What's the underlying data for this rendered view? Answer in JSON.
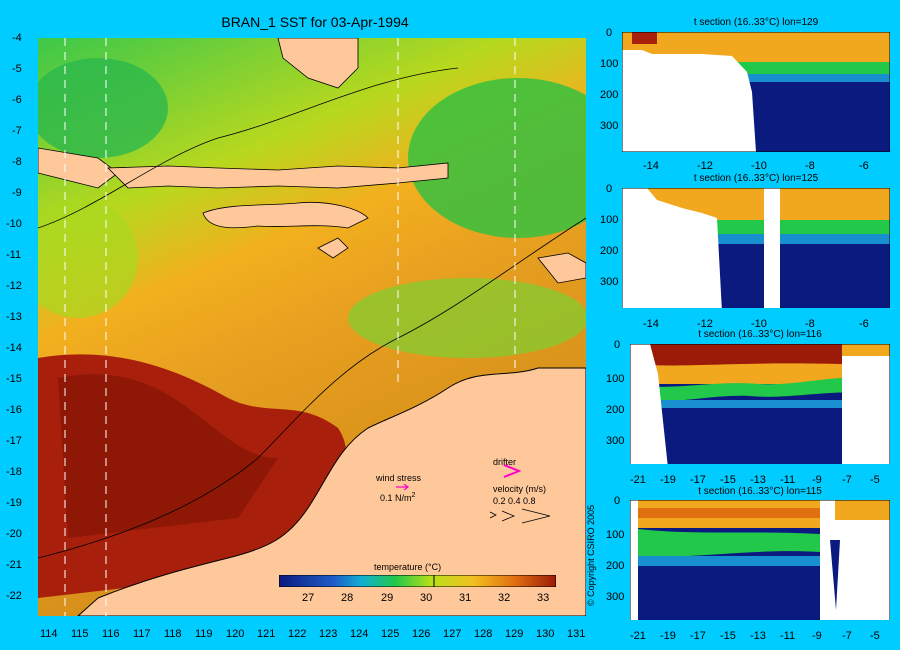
{
  "title": "BRAN_1 SST for 03-Apr-1994",
  "map": {
    "y_ticks": [
      "-4",
      "-5",
      "-6",
      "-7",
      "-8",
      "-9",
      "-10",
      "-11",
      "-12",
      "-13",
      "-14",
      "-15",
      "-16",
      "-17",
      "-18",
      "-19",
      "-20",
      "-21",
      "-22"
    ],
    "x_ticks": [
      "114",
      "115",
      "116",
      "117",
      "118",
      "119",
      "120",
      "121",
      "122",
      "123",
      "124",
      "125",
      "126",
      "127",
      "128",
      "129",
      "130",
      "131"
    ]
  },
  "legend": {
    "wind_stress_label": "wind stress",
    "wind_stress_value": "0.1 N/m",
    "wind_stress_sup": "2",
    "drifter_label": "drifter",
    "velocity_label": "velocity (m/s)",
    "velocity_values": "0.2 0.4 0.8",
    "colorbar_title": "temperature (°C)",
    "colorbar_ticks": [
      "27",
      "28",
      "29",
      "30",
      "31",
      "32",
      "33"
    ],
    "colors": {
      "cold": "#0b1a7f",
      "mid": "#22c84a",
      "warm": "#f2a81e",
      "hot": "#9b1a08",
      "land": "#ffc89a",
      "background": "#00ccff",
      "drifter": "#ff00cc"
    }
  },
  "sections": [
    {
      "title": "t section (16..33°C) lon=129",
      "x_ticks": [
        "-14",
        "-12",
        "-10",
        "-8",
        "-6"
      ],
      "y_ticks": [
        "0",
        "100",
        "200",
        "300"
      ]
    },
    {
      "title": "t section (16..33°C) lon=125",
      "x_ticks": [
        "-14",
        "-12",
        "-10",
        "-8",
        "-6"
      ],
      "y_ticks": [
        "0",
        "100",
        "200",
        "300"
      ]
    },
    {
      "title": "t section (16..33°C) lon=116",
      "x_ticks": [
        "-21",
        "-19",
        "-17",
        "-15",
        "-13",
        "-11",
        "-9",
        "-7",
        "-5"
      ],
      "y_ticks": [
        "0",
        "100",
        "200",
        "300"
      ]
    },
    {
      "title": "t section (16..33°C) lon=115",
      "x_ticks": [
        "-21",
        "-19",
        "-17",
        "-15",
        "-13",
        "-11",
        "-9",
        "-7",
        "-5"
      ],
      "y_ticks": [
        "0",
        "100",
        "200",
        "300"
      ]
    }
  ],
  "copyright": "© Copyright CSIRO 2005"
}
